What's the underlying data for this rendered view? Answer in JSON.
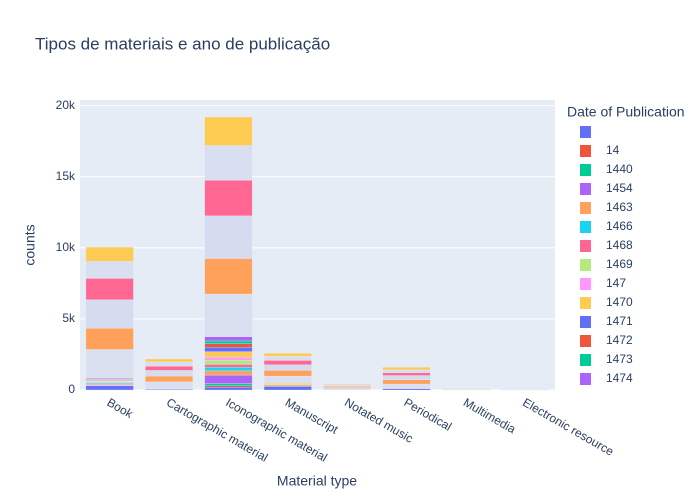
{
  "chart_data": {
    "type": "bar",
    "stacked": true,
    "title": "Tipos de materiais e ano de publicação",
    "x_label": "Material type",
    "y_label": "counts",
    "legend_title": "Date of Publication",
    "categories": [
      "Book",
      "Cartographic material",
      "Iconographic material",
      "Manuscript",
      "Notated music",
      "Periodical",
      "Multimedia",
      "Electronic resource"
    ],
    "ylim": [
      0,
      20400
    ],
    "yticks": [
      0,
      {
        "value": 5000,
        "label": "5k"
      },
      {
        "value": 10000,
        "label": "10k"
      },
      {
        "value": 15000,
        "label": "15k"
      },
      {
        "value": 20000,
        "label": "20k"
      }
    ],
    "grid": true,
    "series": [
      {
        "name": null,
        "color": "#636efa",
        "values": [
          300,
          50,
          200,
          250,
          20,
          100,
          10,
          5
        ]
      },
      {
        "name": "14",
        "color": "#EF553B",
        "values": [
          20,
          0,
          100,
          0,
          0,
          0,
          0,
          0
        ]
      },
      {
        "name": "1440",
        "color": "#00cc96",
        "values": [
          30,
          0,
          150,
          0,
          0,
          0,
          0,
          0
        ]
      },
      {
        "name": "1454",
        "color": "#ab63fa",
        "values": [
          40,
          0,
          600,
          0,
          0,
          0,
          0,
          0
        ]
      },
      {
        "name": "1463",
        "color": "#FFA15A",
        "values": [
          50,
          0,
          300,
          100,
          0,
          0,
          0,
          0
        ]
      },
      {
        "name": "1466",
        "color": "#19d3f3",
        "values": [
          60,
          10,
          250,
          0,
          0,
          0,
          0,
          0
        ]
      },
      {
        "name": "1468",
        "color": "#FF6692",
        "values": [
          40,
          0,
          200,
          0,
          0,
          0,
          0,
          0
        ]
      },
      {
        "name": "1469",
        "color": "#B6E880",
        "values": [
          50,
          0,
          300,
          50,
          0,
          0,
          0,
          0
        ]
      },
      {
        "name": "147",
        "color": "#FF97FF",
        "values": [
          30,
          0,
          200,
          0,
          0,
          0,
          0,
          0
        ]
      },
      {
        "name": "1470",
        "color": "#FECB52",
        "values": [
          60,
          20,
          400,
          80,
          0,
          20,
          0,
          0
        ]
      },
      {
        "name": "1471",
        "color": "#636efa",
        "values": [
          50,
          0,
          300,
          0,
          0,
          0,
          0,
          0
        ]
      },
      {
        "name": "1472",
        "color": "#EF553B",
        "values": [
          40,
          0,
          250,
          0,
          0,
          0,
          0,
          0
        ]
      },
      {
        "name": "1473",
        "color": "#00cc96",
        "values": [
          30,
          0,
          200,
          0,
          0,
          0,
          0,
          0
        ]
      },
      {
        "name": "1474",
        "color": "#ab63fa",
        "values": [
          50,
          0,
          300,
          0,
          10,
          0,
          0,
          0
        ]
      },
      {
        "name": null,
        "color": "#dbe0f0",
        "values": [
          2000,
          500,
          3000,
          500,
          80,
          300,
          20,
          10
        ]
      },
      {
        "name": null,
        "color": "#FFA15A",
        "values": [
          1500,
          400,
          2500,
          400,
          70,
          300,
          20,
          10
        ]
      },
      {
        "name": null,
        "color": "#d6dcef",
        "values": [
          2000,
          400,
          3000,
          400,
          70,
          300,
          20,
          10
        ]
      },
      {
        "name": null,
        "color": "#FF6692",
        "values": [
          1500,
          300,
          2500,
          300,
          50,
          200,
          10,
          5
        ]
      },
      {
        "name": null,
        "color": "#d9def1",
        "values": [
          1200,
          300,
          2450,
          300,
          50,
          200,
          10,
          5
        ]
      },
      {
        "name": null,
        "color": "#FECB52",
        "values": [
          1000,
          200,
          2000,
          200,
          50,
          180,
          10,
          5
        ]
      }
    ]
  }
}
